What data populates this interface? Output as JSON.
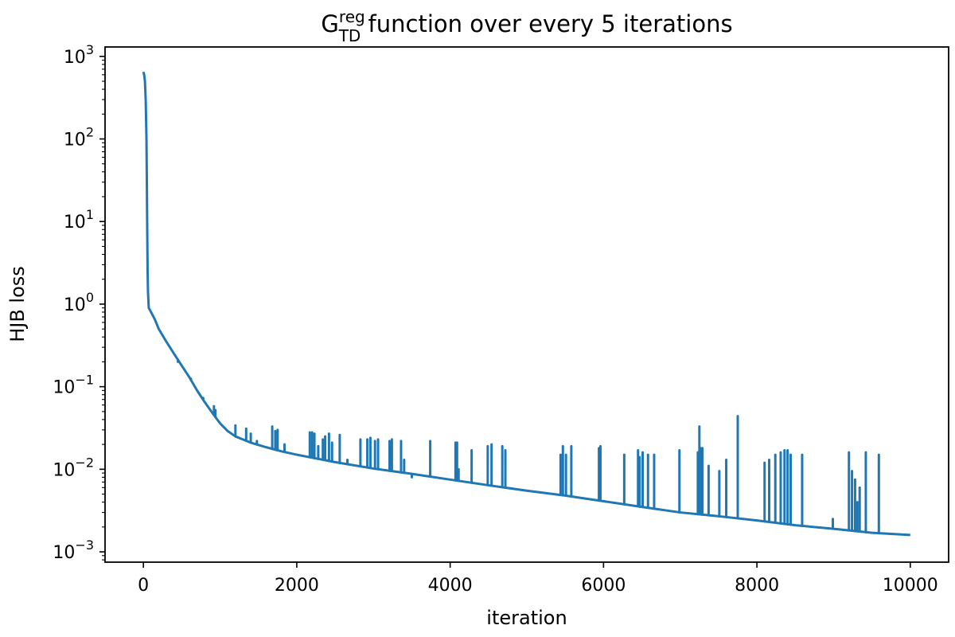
{
  "chart_data": {
    "type": "line",
    "title": {
      "base": "G",
      "superscript": "reg",
      "subscript": "TD",
      "rest": " function over every 5 iterations"
    },
    "xlabel": "iteration",
    "ylabel": "HJB loss",
    "xlim": [
      -500,
      10500
    ],
    "ylim": [
      0.00075,
      1300
    ],
    "yscale": "log",
    "grid": false,
    "line_color": "#1f77b4",
    "x_ticks": [
      {
        "value": 0,
        "label": "0"
      },
      {
        "value": 2000,
        "label": "2000"
      },
      {
        "value": 4000,
        "label": "4000"
      },
      {
        "value": 6000,
        "label": "6000"
      },
      {
        "value": 8000,
        "label": "8000"
      },
      {
        "value": 10000,
        "label": "10000"
      }
    ],
    "y_ticks": [
      {
        "value": 0.001,
        "base": "10",
        "exp": "−3"
      },
      {
        "value": 0.01,
        "base": "10",
        "exp": "−2"
      },
      {
        "value": 0.1,
        "base": "10",
        "exp": "−1"
      },
      {
        "value": 1,
        "base": "10",
        "exp": "0"
      },
      {
        "value": 10,
        "base": "10",
        "exp": "1"
      },
      {
        "value": 100,
        "base": "10",
        "exp": "2"
      },
      {
        "value": 1000,
        "base": "10",
        "exp": "3"
      }
    ],
    "series": [
      {
        "baseline": [
          [
            0,
            650
          ],
          [
            10,
            600
          ],
          [
            20,
            500
          ],
          [
            30,
            300
          ],
          [
            40,
            100
          ],
          [
            45,
            30
          ],
          [
            50,
            8
          ],
          [
            55,
            2.5
          ],
          [
            60,
            1.4
          ],
          [
            70,
            0.9
          ],
          [
            100,
            0.8
          ],
          [
            150,
            0.65
          ],
          [
            200,
            0.5
          ],
          [
            300,
            0.35
          ],
          [
            400,
            0.25
          ],
          [
            500,
            0.18
          ],
          [
            600,
            0.13
          ],
          [
            700,
            0.09
          ],
          [
            800,
            0.065
          ],
          [
            900,
            0.048
          ],
          [
            1000,
            0.036
          ],
          [
            1100,
            0.029
          ],
          [
            1200,
            0.025
          ],
          [
            1400,
            0.021
          ],
          [
            1600,
            0.0185
          ],
          [
            1800,
            0.0165
          ],
          [
            2000,
            0.015
          ],
          [
            2500,
            0.0122
          ],
          [
            3000,
            0.0102
          ],
          [
            3500,
            0.0088
          ],
          [
            4000,
            0.0075
          ],
          [
            4500,
            0.0064
          ],
          [
            5000,
            0.0055
          ],
          [
            5500,
            0.0048
          ],
          [
            6000,
            0.0041
          ],
          [
            6500,
            0.0035
          ],
          [
            7000,
            0.003
          ],
          [
            7500,
            0.0027
          ],
          [
            8000,
            0.0024
          ],
          [
            8500,
            0.0021
          ],
          [
            9000,
            0.0019
          ],
          [
            9500,
            0.0017
          ],
          [
            10000,
            0.0016
          ]
        ],
        "spikes": [
          [
            450,
            0.2
          ],
          [
            620,
            0.125
          ],
          [
            780,
            0.073
          ],
          [
            920,
            0.058
          ],
          [
            940,
            0.052
          ],
          [
            1200,
            0.034
          ],
          [
            1340,
            0.031
          ],
          [
            1400,
            0.027
          ],
          [
            1480,
            0.022
          ],
          [
            1680,
            0.033
          ],
          [
            1720,
            0.029
          ],
          [
            1750,
            0.03
          ],
          [
            1840,
            0.02
          ],
          [
            2170,
            0.028
          ],
          [
            2200,
            0.028
          ],
          [
            2230,
            0.027
          ],
          [
            2280,
            0.019
          ],
          [
            2340,
            0.023
          ],
          [
            2370,
            0.025
          ],
          [
            2420,
            0.027
          ],
          [
            2460,
            0.021
          ],
          [
            2560,
            0.026
          ],
          [
            2660,
            0.013
          ],
          [
            2830,
            0.023
          ],
          [
            2920,
            0.023
          ],
          [
            2960,
            0.024
          ],
          [
            3020,
            0.022
          ],
          [
            3060,
            0.023
          ],
          [
            3210,
            0.022
          ],
          [
            3240,
            0.023
          ],
          [
            3360,
            0.022
          ],
          [
            3400,
            0.013
          ],
          [
            3500,
            0.008
          ],
          [
            3740,
            0.022
          ],
          [
            4070,
            0.021
          ],
          [
            4090,
            0.021
          ],
          [
            4110,
            0.01
          ],
          [
            4280,
            0.017
          ],
          [
            4490,
            0.019
          ],
          [
            4540,
            0.02
          ],
          [
            4680,
            0.019
          ],
          [
            4720,
            0.017
          ],
          [
            5440,
            0.015
          ],
          [
            5470,
            0.019
          ],
          [
            5510,
            0.015
          ],
          [
            5580,
            0.019
          ],
          [
            5940,
            0.018
          ],
          [
            5960,
            0.019
          ],
          [
            6270,
            0.015
          ],
          [
            6450,
            0.017
          ],
          [
            6470,
            0.014
          ],
          [
            6510,
            0.016
          ],
          [
            6580,
            0.015
          ],
          [
            6660,
            0.015
          ],
          [
            6990,
            0.017
          ],
          [
            7230,
            0.016
          ],
          [
            7250,
            0.033
          ],
          [
            7270,
            0.018
          ],
          [
            7290,
            0.018
          ],
          [
            7370,
            0.011
          ],
          [
            7510,
            0.0095
          ],
          [
            7600,
            0.013
          ],
          [
            7750,
            0.044
          ],
          [
            8100,
            0.012
          ],
          [
            8160,
            0.013
          ],
          [
            8240,
            0.015
          ],
          [
            8310,
            0.016
          ],
          [
            8360,
            0.017
          ],
          [
            8400,
            0.017
          ],
          [
            8440,
            0.015
          ],
          [
            8590,
            0.015
          ],
          [
            8990,
            0.0025
          ],
          [
            9200,
            0.016
          ],
          [
            9240,
            0.0095
          ],
          [
            9280,
            0.0075
          ],
          [
            9310,
            0.004
          ],
          [
            9340,
            0.006
          ],
          [
            9420,
            0.016
          ],
          [
            9590,
            0.015
          ]
        ]
      }
    ]
  }
}
